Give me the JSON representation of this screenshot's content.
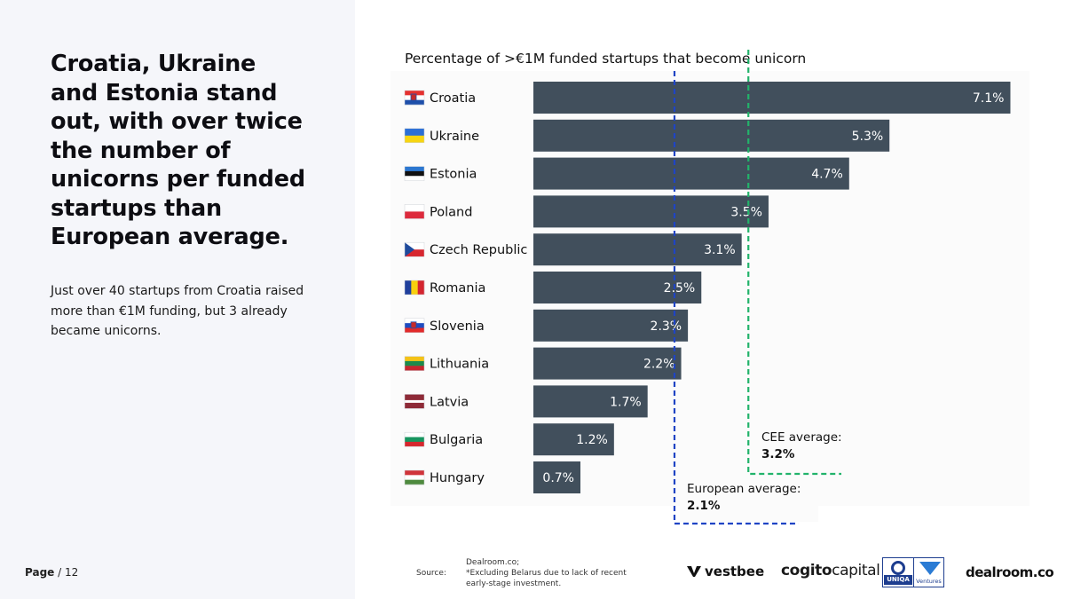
{
  "headline": "Croatia, Ukraine and Estonia stand out, with over twice the number of unicorns per funded startups than European average.",
  "subtext": "Just over 40 startups from Croatia raised more than €1M funding, but 3 already became unicorns.",
  "page": {
    "label": "Page",
    "number": "/ 12"
  },
  "source": {
    "label": "Source:",
    "lines": [
      "Dealroom.co;",
      "*Excluding Belarus due to lack of  recent",
      "early-stage investment."
    ]
  },
  "logos": {
    "vestbee": "vestbee",
    "cogito_light_a": "cogito",
    "cogito_light_b": "capital",
    "uniqa_text": "UNIQA",
    "uniqa_ventures": "Ventures",
    "dealroom": "dealroom.co"
  },
  "annotations": {
    "cee_label": "CEE average:",
    "cee_value": "3.2%",
    "eu_label": "European average:",
    "eu_value": "2.1%"
  },
  "colors": {
    "bar": "#414f5c",
    "bar_label": "#ffffff",
    "cee_line": "#22b36b",
    "eu_line": "#1f44c4"
  },
  "chart_data": {
    "type": "bar",
    "orientation": "horizontal",
    "title": "Percentage of >€1M funded startups that become unicorn",
    "categories": [
      "Croatia",
      "Ukraine",
      "Estonia",
      "Poland",
      "Czech Republic",
      "Romania",
      "Slovenia",
      "Lithuania",
      "Latvia",
      "Bulgaria",
      "Hungary"
    ],
    "values": [
      7.1,
      5.3,
      4.7,
      3.5,
      3.1,
      2.5,
      2.3,
      2.2,
      1.7,
      1.2,
      0.7
    ],
    "value_labels": [
      "7.1%",
      "5.3%",
      "4.7%",
      "3.5%",
      "3.1%",
      "2.5%",
      "2.3%",
      "2.2%",
      "1.7%",
      "1.2%",
      "0.7%"
    ],
    "flags": [
      "croatia-flag-icon",
      "ukraine-flag-icon",
      "estonia-flag-icon",
      "poland-flag-icon",
      "czech-flag-icon",
      "romania-flag-icon",
      "slovenia-flag-icon",
      "lithuania-flag-icon",
      "latvia-flag-icon",
      "bulgaria-flag-icon",
      "hungary-flag-icon"
    ],
    "reference_lines": [
      {
        "name": "CEE average",
        "value": 3.2,
        "style": "dashed"
      },
      {
        "name": "European average",
        "value": 2.1,
        "style": "dashed"
      }
    ],
    "xlim": [
      0,
      7.1
    ],
    "grid": false,
    "xlabel": "",
    "ylabel": ""
  }
}
